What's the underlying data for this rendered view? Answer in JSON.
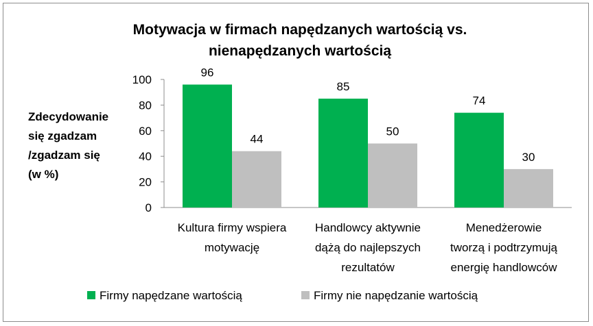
{
  "chart_data": {
    "type": "bar",
    "title_lines": [
      "Motywacja w firmach napędzanych wartością vs.",
      "nienapędzanych wartością"
    ],
    "ylabel_lines": [
      "Zdecydowanie",
      "się zgadzam",
      "/zgadzam się",
      "(w %)"
    ],
    "xlabel": "",
    "ylim": [
      0,
      100
    ],
    "yticks": [
      0,
      20,
      40,
      60,
      80,
      100
    ],
    "grid": false,
    "legend_position": "bottom",
    "categories": [
      [
        "Kultura firmy wspiera",
        "motywację"
      ],
      [
        "Handlowcy aktywnie",
        "dążą do najlepszych",
        "rezultatów"
      ],
      [
        "Menedżerowie",
        "tworzą i podtrzymują",
        "energię handlowców"
      ]
    ],
    "series": [
      {
        "name": "Firmy napędzane wartością",
        "color": "#00b050",
        "values": [
          96,
          85,
          74
        ]
      },
      {
        "name": "Firmy nie napędzanie wartością",
        "color": "#bfbfbf",
        "values": [
          44,
          50,
          30
        ]
      }
    ]
  }
}
